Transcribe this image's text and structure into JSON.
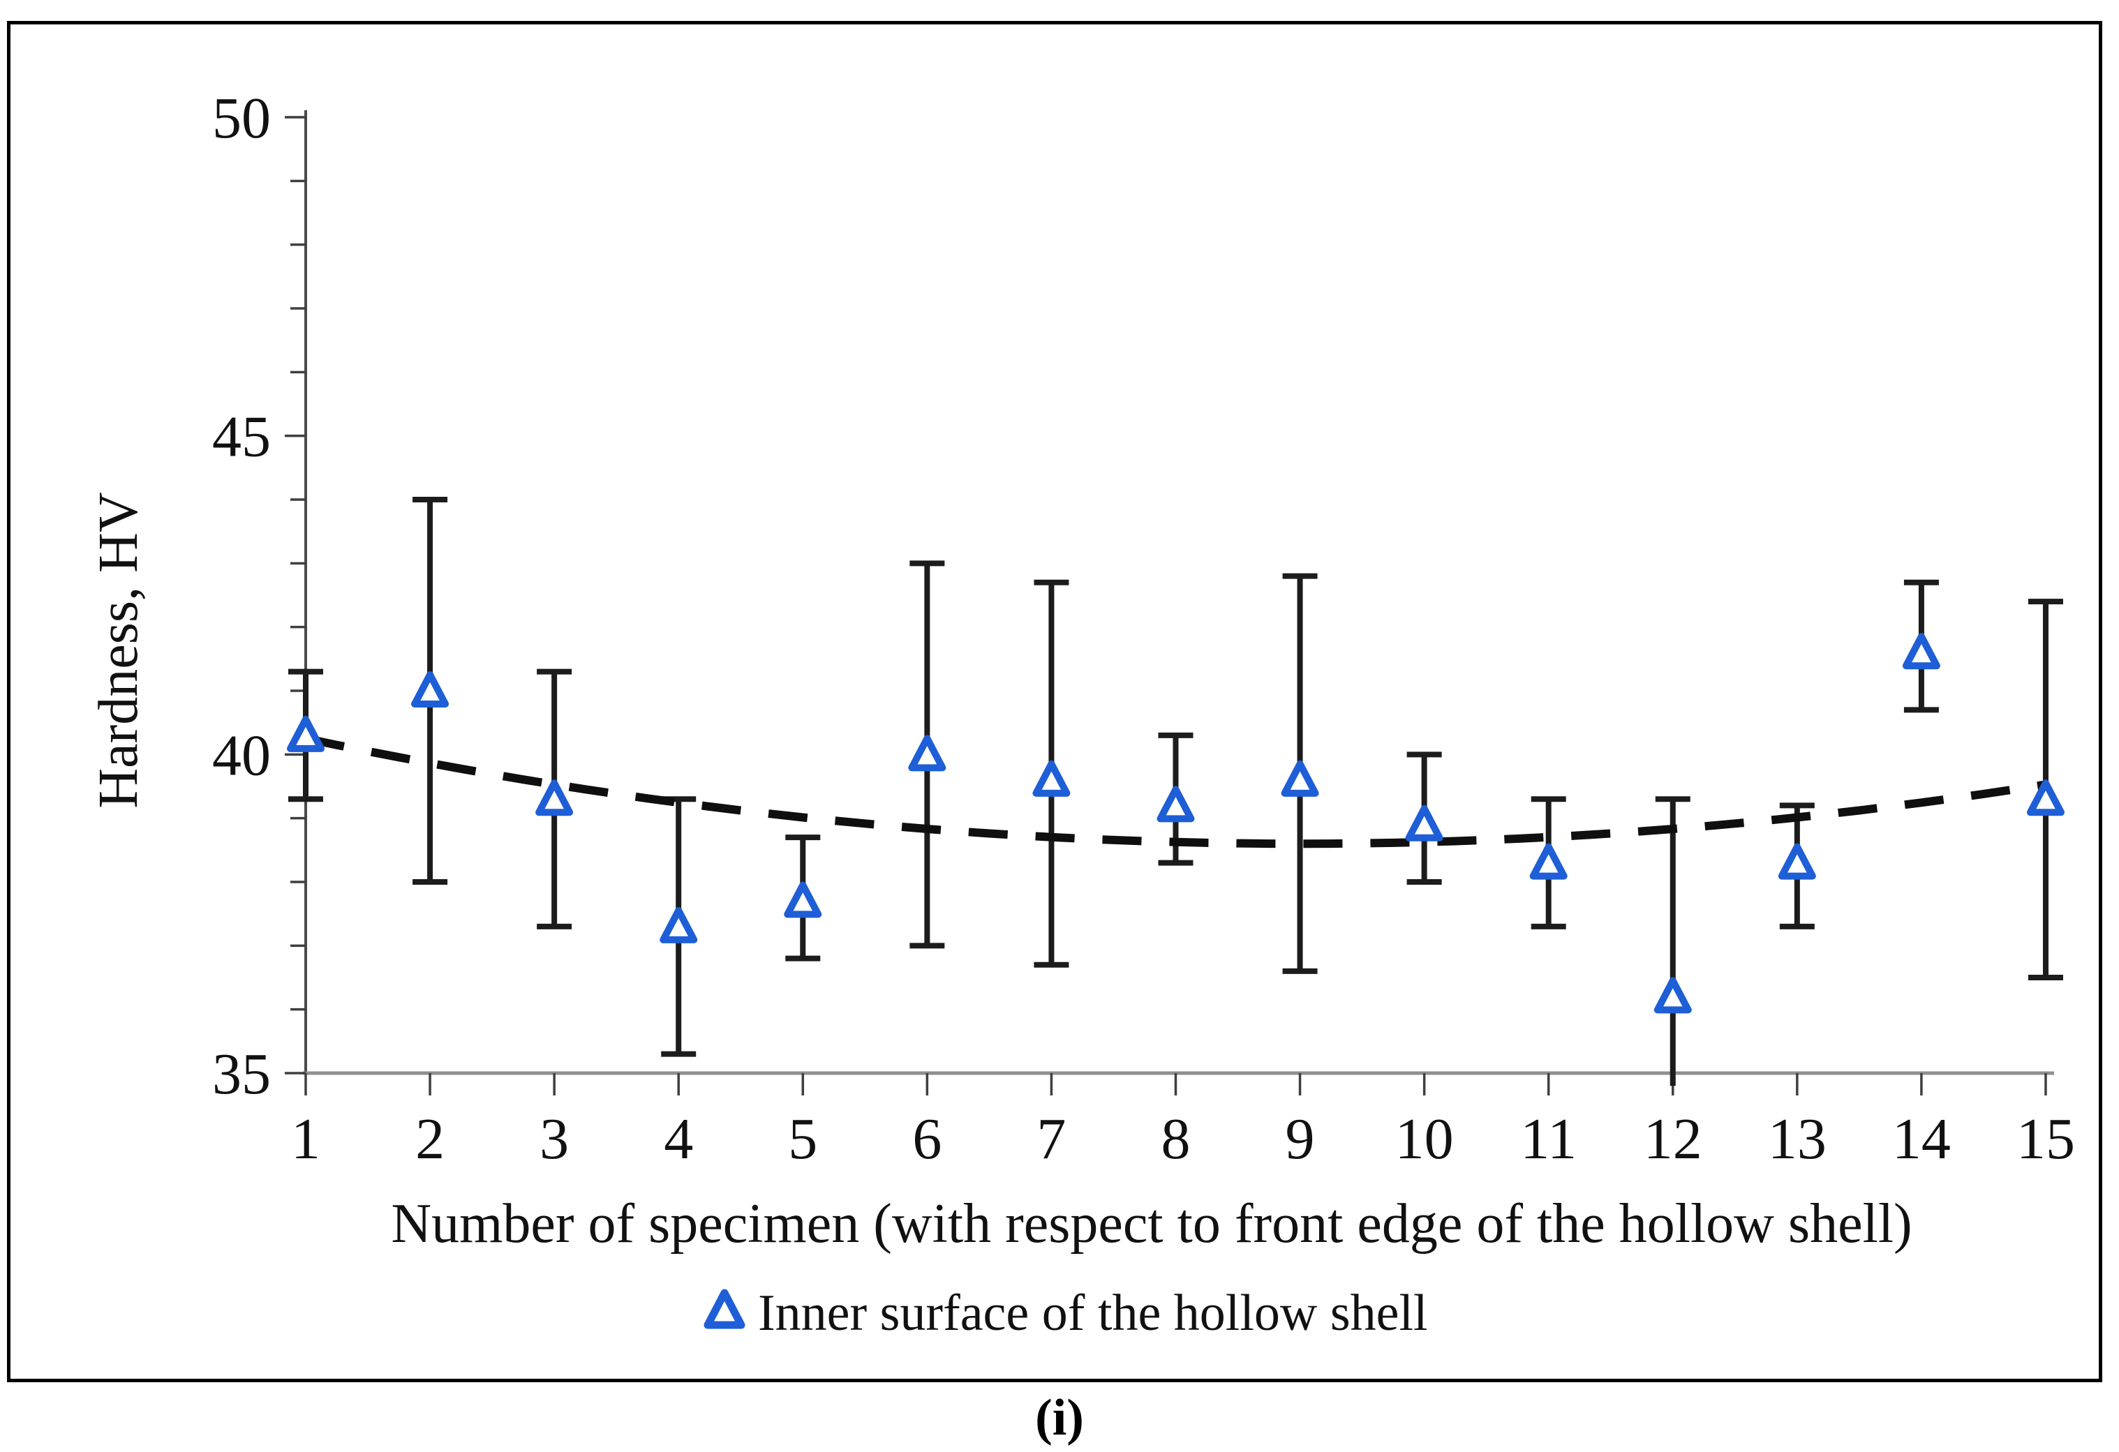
{
  "figure": {
    "caption": "(i)"
  },
  "chart_data": {
    "type": "scatter",
    "title": "",
    "xlabel": "Number of specimen (with respect to front edge of the hollow shell)",
    "ylabel": "Hardness, HV",
    "xlim": [
      1,
      15
    ],
    "ylim": [
      35,
      50
    ],
    "grid": false,
    "xticks": [
      1,
      2,
      3,
      4,
      5,
      6,
      7,
      8,
      9,
      10,
      11,
      12,
      13,
      14,
      15
    ],
    "yticks_major": [
      35,
      40,
      45,
      50
    ],
    "ytick_minor_step": 1,
    "x": [
      1,
      2,
      3,
      4,
      5,
      6,
      7,
      8,
      9,
      10,
      11,
      12,
      13,
      14,
      15
    ],
    "series": [
      {
        "name": "Inner surface of the hollow shell",
        "marker": "open-triangle",
        "color": "#1e5ed6",
        "values": [
          40.3,
          41.0,
          39.3,
          37.3,
          37.7,
          40.0,
          39.6,
          39.2,
          39.6,
          38.9,
          38.3,
          36.2,
          38.3,
          41.6,
          39.3
        ],
        "error_low": [
          39.3,
          38.0,
          37.3,
          35.3,
          36.8,
          37.0,
          36.7,
          38.3,
          36.6,
          38.0,
          37.3,
          34.8,
          37.3,
          40.7,
          36.5
        ],
        "error_high": [
          41.3,
          44.0,
          41.3,
          39.3,
          38.7,
          43.0,
          42.7,
          40.3,
          42.8,
          40.0,
          39.3,
          39.3,
          39.2,
          42.7,
          42.4
        ],
        "lower_cap": [
          true,
          true,
          true,
          true,
          true,
          true,
          true,
          true,
          true,
          true,
          true,
          false,
          true,
          true,
          true
        ]
      }
    ],
    "trendline": {
      "style": "dashed",
      "color": "#0f0f0f",
      "shape": "quadratic",
      "min_x": 9,
      "min_y": 38.6,
      "quad_coeff": 0.0258
    },
    "legend": {
      "position": "bottom",
      "entries": [
        {
          "label": "Inner surface of the hollow shell",
          "marker": "open-triangle",
          "color": "#1e5ed6"
        }
      ]
    },
    "colors": {
      "error_bar": "#1c1c1c",
      "x_axis_line": "#8f8f8f",
      "y_axis_line": "#4a4a4a",
      "tick": "#3f3f3f"
    }
  }
}
